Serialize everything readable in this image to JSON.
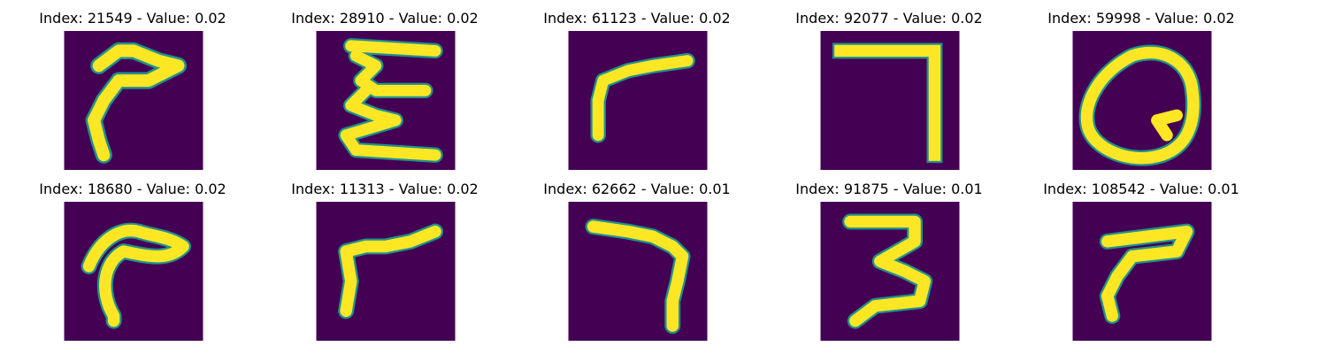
{
  "colors": {
    "background": "#440154",
    "foreground": "#fde725",
    "edge": "#21918c"
  },
  "samples": [
    {
      "title": "Index: 21549 - Value: 0.02",
      "glyph": "hook"
    },
    {
      "title": "Index: 28910 - Value: 0.02",
      "glyph": "zigzag-e"
    },
    {
      "title": "Index: 61123 - Value: 0.02",
      "glyph": "r"
    },
    {
      "title": "Index: 92077 - Value: 0.02",
      "glyph": "seven"
    },
    {
      "title": "Index: 59998 - Value: 0.02",
      "glyph": "q"
    },
    {
      "title": "Index: 18680 - Value: 0.02",
      "glyph": "hook"
    },
    {
      "title": "Index: 11313 - Value: 0.02",
      "glyph": "r"
    },
    {
      "title": "Index: 62662 - Value: 0.01",
      "glyph": "seven-curve"
    },
    {
      "title": "Index: 91875 - Value: 0.01",
      "glyph": "three"
    },
    {
      "title": "Index: 108542 - Value: 0.01",
      "glyph": "r"
    }
  ]
}
